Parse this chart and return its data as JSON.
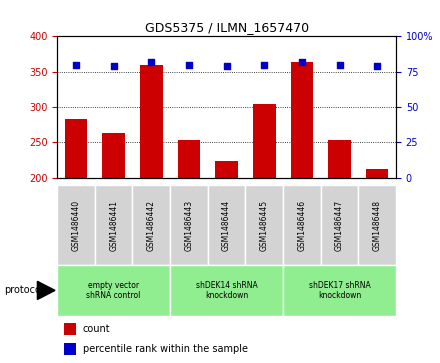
{
  "title": "GDS5375 / ILMN_1657470",
  "samples": [
    "GSM1486440",
    "GSM1486441",
    "GSM1486442",
    "GSM1486443",
    "GSM1486444",
    "GSM1486445",
    "GSM1486446",
    "GSM1486447",
    "GSM1486448"
  ],
  "counts": [
    283,
    264,
    360,
    254,
    224,
    304,
    363,
    254,
    212
  ],
  "percentile_ranks": [
    80,
    79,
    82,
    80,
    79,
    80,
    82,
    80,
    79
  ],
  "ylim_left": [
    200,
    400
  ],
  "ylim_right": [
    0,
    100
  ],
  "yticks_left": [
    200,
    250,
    300,
    350,
    400
  ],
  "yticks_right": [
    0,
    25,
    50,
    75,
    100
  ],
  "bar_color": "#cc0000",
  "dot_color": "#0000cc",
  "grid_color": "#000000",
  "protocols": [
    {
      "label": "empty vector\nshRNA control",
      "start": 0,
      "end": 3,
      "color": "#90EE90"
    },
    {
      "label": "shDEK14 shRNA\nknockdown",
      "start": 3,
      "end": 6,
      "color": "#90EE90"
    },
    {
      "label": "shDEK17 shRNA\nknockdown",
      "start": 6,
      "end": 9,
      "color": "#90EE90"
    }
  ],
  "legend_items": [
    {
      "label": "count",
      "color": "#cc0000"
    },
    {
      "label": "percentile rank within the sample",
      "color": "#0000cc"
    }
  ],
  "protocol_label": "protocol",
  "sample_box_color": "#d3d3d3",
  "plot_bg": "#ffffff"
}
